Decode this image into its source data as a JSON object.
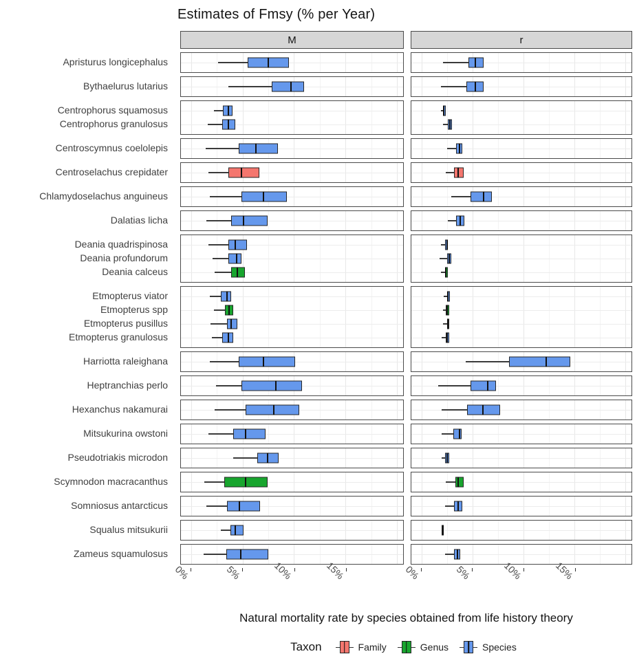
{
  "chart_data": {
    "type": "boxplot",
    "orientation": "horizontal",
    "title": "Estimates of Fmsy (% per Year)",
    "xlabel": "Natural mortality rate by species obtained from life history theory",
    "facets": [
      "M",
      "r"
    ],
    "xlim": [
      -1,
      20.6
    ],
    "x_ticks": [
      {
        "value": 0,
        "label": "0%"
      },
      {
        "value": 5,
        "label": "5%"
      },
      {
        "value": 10,
        "label": "10%"
      },
      {
        "value": 15,
        "label": "15%"
      }
    ],
    "x_major_gridlines": [
      0,
      5,
      10,
      15,
      20
    ],
    "x_minor_gridlines": [
      2.5,
      7.5,
      12.5,
      17.5
    ],
    "legend": {
      "title": "Taxon",
      "entries": [
        {
          "label": "Family",
          "taxon": "family"
        },
        {
          "label": "Genus",
          "taxon": "genus"
        },
        {
          "label": "Species",
          "taxon": "species"
        }
      ]
    },
    "colors": {
      "family": "#F4766E",
      "genus": "#18A52E",
      "species": "#6598EC",
      "strip_bg": "#D6D6D6",
      "panel_border": "#4A4A4A"
    },
    "box_format": [
      "whisker_low",
      "q1",
      "median",
      "q3"
    ],
    "groups": [
      [
        {
          "name": "Apristurus longicephalus",
          "taxon": "species",
          "M": [
            2.6,
            5.5,
            7.5,
            9.5
          ],
          "r": [
            2.1,
            4.6,
            5.3,
            6.1
          ]
        }
      ],
      [
        {
          "name": "Bythaelurus lutarius",
          "taxon": "species",
          "M": [
            3.6,
            7.8,
            9.7,
            11.0
          ],
          "r": [
            1.9,
            4.4,
            5.3,
            6.1
          ]
        }
      ],
      [
        {
          "name": "Centrophorus squamosus",
          "taxon": "species",
          "M": [
            2.2,
            3.1,
            3.6,
            4.0
          ],
          "r": [
            1.9,
            2.1,
            2.2,
            2.4
          ]
        },
        {
          "name": "Centrophorus granulosus",
          "taxon": "species",
          "M": [
            1.6,
            3.0,
            3.6,
            4.3
          ],
          "r": [
            2.1,
            2.6,
            2.8,
            3.0
          ]
        }
      ],
      [
        {
          "name": "Centroscymnus coelolepis",
          "taxon": "species",
          "M": [
            1.4,
            4.6,
            6.3,
            8.4
          ],
          "r": [
            2.5,
            3.4,
            3.7,
            4.0
          ]
        }
      ],
      [
        {
          "name": "Centroselachus crepidater",
          "taxon": "family",
          "M": [
            1.7,
            3.6,
            4.9,
            6.6
          ],
          "r": [
            2.4,
            3.2,
            3.6,
            4.1
          ]
        }
      ],
      [
        {
          "name": "Chlamydoselachus anguineus",
          "taxon": "species",
          "M": [
            1.8,
            4.9,
            7.0,
            9.3
          ],
          "r": [
            2.9,
            4.8,
            6.1,
            6.9
          ]
        }
      ],
      [
        {
          "name": "Dalatias licha",
          "taxon": "species",
          "M": [
            1.5,
            3.9,
            5.1,
            7.4
          ],
          "r": [
            2.6,
            3.4,
            3.8,
            4.2
          ]
        }
      ],
      [
        {
          "name": "Deania quadrispinosa",
          "taxon": "species",
          "M": [
            1.7,
            3.6,
            4.3,
            5.4
          ],
          "r": [
            1.9,
            2.3,
            2.5,
            2.6
          ]
        },
        {
          "name": "Deania profundorum",
          "taxon": "species",
          "M": [
            2.1,
            3.6,
            4.4,
            4.9
          ],
          "r": [
            1.8,
            2.5,
            2.7,
            2.9
          ]
        },
        {
          "name": "Deania calceus",
          "taxon": "genus",
          "M": [
            2.3,
            3.9,
            4.5,
            5.2
          ],
          "r": [
            1.9,
            2.3,
            2.4,
            2.6
          ]
        }
      ],
      [
        {
          "name": "Etmopterus viator",
          "taxon": "species",
          "M": [
            1.8,
            2.9,
            3.5,
            3.9
          ],
          "r": [
            2.2,
            2.5,
            2.6,
            2.8
          ]
        },
        {
          "name": "Etmopterus spp",
          "taxon": "genus",
          "M": [
            2.2,
            3.3,
            3.7,
            4.1
          ],
          "r": [
            2.1,
            2.4,
            2.5,
            2.7
          ]
        },
        {
          "name": "Etmopterus pusillus",
          "taxon": "species",
          "M": [
            1.9,
            3.5,
            3.9,
            4.5
          ],
          "r": [
            2.1,
            2.5,
            2.6,
            2.7
          ]
        },
        {
          "name": "Etmopterus granulosus",
          "taxon": "species",
          "M": [
            2.0,
            3.0,
            3.6,
            4.1
          ],
          "r": [
            2.0,
            2.4,
            2.5,
            2.7
          ]
        }
      ],
      [
        {
          "name": "Harriotta raleighana",
          "taxon": "species",
          "M": [
            1.8,
            4.6,
            7.0,
            10.1
          ],
          "r": [
            4.3,
            8.6,
            12.2,
            14.6
          ]
        }
      ],
      [
        {
          "name": "Heptranchias perlo",
          "taxon": "species",
          "M": [
            2.4,
            4.9,
            8.2,
            10.8
          ],
          "r": [
            1.6,
            4.8,
            6.5,
            7.3
          ]
        }
      ],
      [
        {
          "name": "Hexanchus nakamurai",
          "taxon": "species",
          "M": [
            2.3,
            5.3,
            8.0,
            10.5
          ],
          "r": [
            2.0,
            4.5,
            6.0,
            7.7
          ]
        }
      ],
      [
        {
          "name": "Mitsukurina owstoni",
          "taxon": "species",
          "M": [
            1.7,
            4.1,
            5.3,
            7.2
          ],
          "r": [
            2.0,
            3.1,
            3.7,
            3.9
          ]
        }
      ],
      [
        {
          "name": "Pseudotriakis microdon",
          "taxon": "species",
          "M": [
            4.1,
            6.4,
            7.4,
            8.5
          ],
          "r": [
            2.0,
            2.3,
            2.5,
            2.7
          ]
        }
      ],
      [
        {
          "name": "Scymnodon macracanthus",
          "taxon": "genus",
          "M": [
            1.3,
            3.2,
            5.3,
            7.4
          ],
          "r": [
            2.4,
            3.3,
            3.6,
            4.1
          ]
        }
      ],
      [
        {
          "name": "Somniosus antarcticus",
          "taxon": "species",
          "M": [
            1.5,
            3.5,
            4.7,
            6.7
          ],
          "r": [
            2.3,
            3.2,
            3.6,
            4.0
          ]
        }
      ],
      [
        {
          "name": "Squalus mitsukurii",
          "taxon": "species",
          "M": [
            2.9,
            3.8,
            4.3,
            5.1
          ],
          "r": [
            2.0,
            2.0,
            2.1,
            2.2
          ]
        }
      ],
      [
        {
          "name": "Zameus squamulosus",
          "taxon": "species",
          "M": [
            1.2,
            3.4,
            4.8,
            7.5
          ],
          "r": [
            2.3,
            3.2,
            3.5,
            3.8
          ]
        }
      ]
    ]
  }
}
